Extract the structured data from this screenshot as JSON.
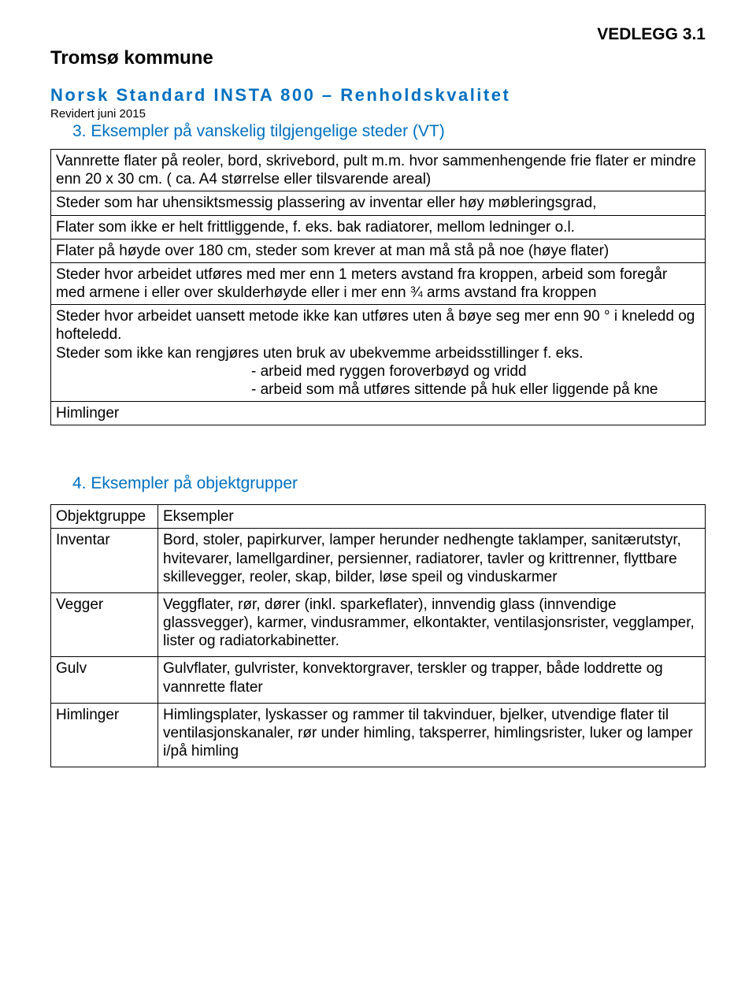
{
  "header": {
    "attachment": "VEDLEGG 3.1",
    "org": "Tromsø kommune",
    "doc_title": "Norsk Standard INSTA 800 – Renholdskvalitet",
    "revision": "Revidert juni 2015"
  },
  "section3": {
    "heading": "3.  Eksempler på vanskelig tilgjengelige steder (VT)",
    "rows": [
      "Vannrette flater på reoler, bord, skrivebord, pult m.m. hvor sammenhengende frie flater er mindre enn 20 x 30 cm. ( ca. A4 størrelse eller tilsvarende areal)",
      "Steder som har uhensiktsmessig plassering av inventar eller høy møbleringsgrad,",
      "Flater som ikke er helt frittliggende, f. eks. bak radiatorer, mellom ledninger o.l.",
      "Flater på høyde over 180 cm, steder som krever at man må stå på noe (høye flater)",
      "Steder hvor arbeidet utføres med mer enn 1 meters avstand fra kroppen, arbeid som foregår med armene i eller over skulderhøyde eller i mer enn ¾ arms avstand fra kroppen",
      "",
      "Himlinger"
    ],
    "row5": {
      "line1": "Steder hvor arbeidet uansett metode ikke kan utføres uten å bøye seg mer enn 90 ° i kneledd og hofteledd.",
      "line2": "Steder som ikke kan rengjøres uten bruk av ubekvemme arbeidsstillinger f. eks.",
      "bullets": [
        "arbeid med ryggen foroverbøyd og vridd",
        "arbeid som må utføres sittende på huk eller liggende på kne"
      ]
    }
  },
  "section4": {
    "heading": "4.  Eksempler på objektgrupper",
    "col1_header": "Objektgruppe",
    "col2_header": "Eksempler",
    "rows": [
      {
        "label": "Inventar",
        "text": "Bord, stoler, papirkurver, lamper herunder nedhengte taklamper, sanitærutstyr, hvitevarer, lamellgardiner, persienner, radiatorer, tavler og krittrenner, flyttbare skillevegger, reoler, skap, bilder, løse speil og vinduskarmer"
      },
      {
        "label": "Vegger",
        "text": "Veggflater, rør, dører (inkl. sparkeflater), innvendig glass (innvendige glassvegger), karmer, vindusrammer, elkontakter, ventilasjonsrister, vegglamper, lister og radiatorkabinetter."
      },
      {
        "label": "Gulv",
        "text": "Gulvflater, gulvrister, konvektorgraver, terskler og trapper, både loddrette og vannrette flater"
      },
      {
        "label": "Himlinger",
        "text": "Himlingsplater, lyskasser og rammer til takvinduer, bjelker, utvendige flater til ventilasjonskanaler, rør under himling, taksperrer, himlingsrister, luker og lamper i/på himling"
      }
    ]
  },
  "colors": {
    "heading_blue": "#0070c0",
    "text_black": "#000000",
    "border": "#000000",
    "background": "#ffffff"
  },
  "fonts": {
    "body_family": "Arial",
    "attachment_size_pt": 16,
    "org_size_pt": 18,
    "title_size_pt": 16,
    "revision_size_pt": 11,
    "section_heading_size_pt": 16,
    "table_text_size_pt": 14
  }
}
